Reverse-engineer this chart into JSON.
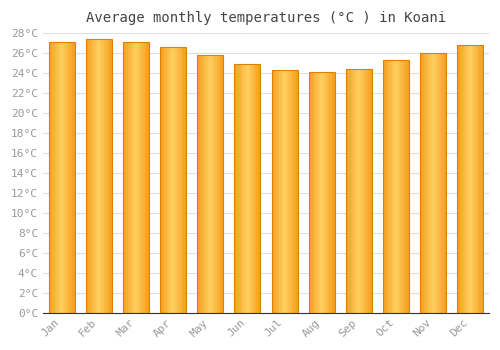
{
  "title": "Average monthly temperatures (°C ) in Koani",
  "months": [
    "Jan",
    "Feb",
    "Mar",
    "Apr",
    "May",
    "Jun",
    "Jul",
    "Aug",
    "Sep",
    "Oct",
    "Nov",
    "Dec"
  ],
  "values": [
    27.1,
    27.4,
    27.1,
    26.6,
    25.8,
    24.9,
    24.3,
    24.1,
    24.4,
    25.3,
    26.0,
    26.8
  ],
  "bar_color_edge": "#E08000",
  "bar_color_dark": "#F5A020",
  "bar_color_light": "#FFD060",
  "ylim": [
    0,
    28
  ],
  "ytick_step": 2,
  "background_color": "#ffffff",
  "plot_bg_color": "#ffffff",
  "grid_color": "#e0e0e0",
  "tick_color": "#999999",
  "title_fontsize": 10,
  "tick_fontsize": 8,
  "bar_width": 0.7,
  "gradient_steps": 20
}
